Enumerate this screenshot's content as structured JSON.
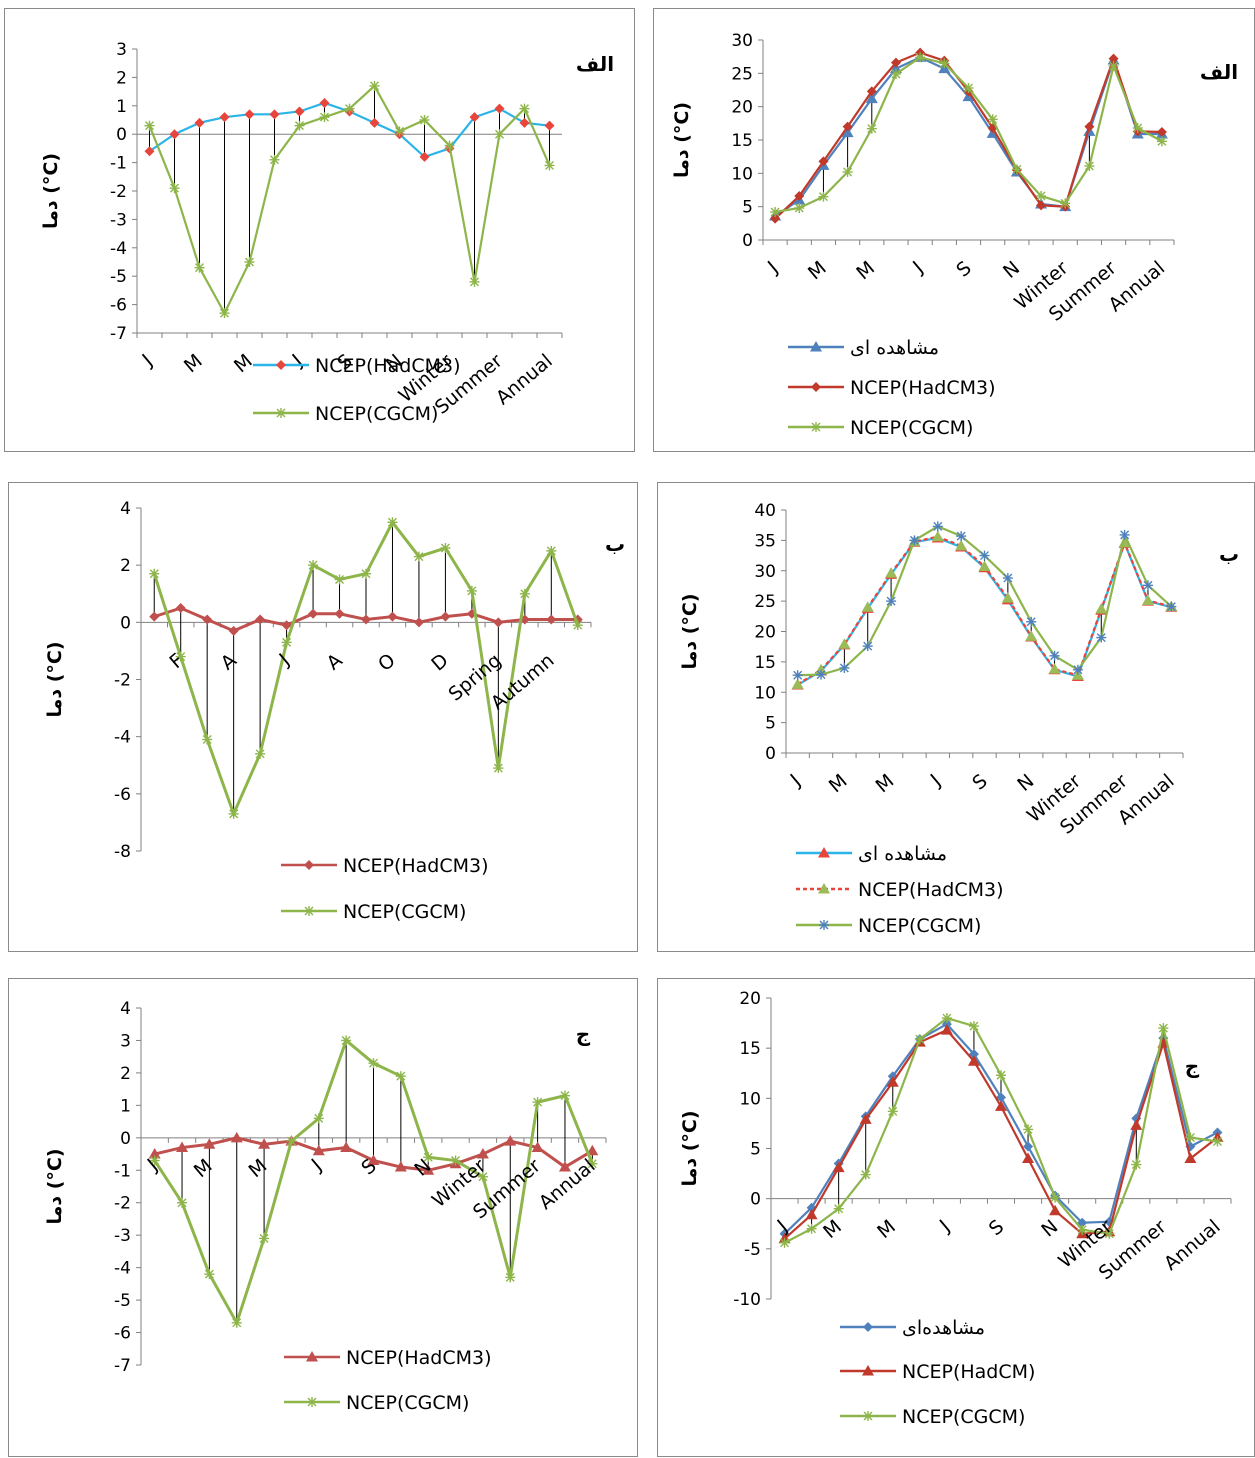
{
  "colors": {
    "blue": "#4F81BD",
    "red": "#C0392B",
    "green": "#8DB54A",
    "cyan": "#2AB4E8",
    "axis": "#808080",
    "grid": "#000000"
  },
  "chart_data": [
    {
      "type": "line",
      "id": "p1",
      "panel_label": "الف",
      "ylabel": "دما (°C)",
      "ylim": [
        -7,
        3
      ],
      "yticks": [
        3,
        2,
        1,
        0,
        -1,
        -2,
        -3,
        -4,
        -5,
        -6,
        -7
      ],
      "tick_labels": [
        "J",
        "M",
        "M",
        "J",
        "S",
        "N",
        "Winter",
        "Summer",
        "Annual"
      ],
      "tick_positions": [
        0,
        2,
        4,
        6,
        8,
        10,
        12,
        14,
        16
      ],
      "series": [
        {
          "name": "NCEP(HadCM3)",
          "color": "#2AB4E8",
          "marker": "diamond",
          "marker_color": "#E8453C",
          "values": [
            -0.6,
            0.0,
            0.4,
            0.6,
            0.7,
            0.7,
            0.8,
            1.1,
            0.8,
            0.4,
            0.0,
            -0.8,
            -0.5,
            0.6,
            0.9,
            0.4,
            0.3
          ]
        },
        {
          "name": "NCEP(CGCM)",
          "color": "#8DB54A",
          "marker": "star",
          "values": [
            0.3,
            -1.9,
            -4.7,
            -6.3,
            -4.5,
            -0.9,
            0.3,
            0.6,
            0.9,
            1.7,
            0.1,
            0.5,
            -0.4,
            -5.2,
            0.0,
            0.9,
            -1.1
          ]
        }
      ]
    },
    {
      "type": "line",
      "id": "p2",
      "panel_label": "الف",
      "ylabel": "دما (°C)",
      "ylim": [
        0,
        30
      ],
      "yticks": [
        30,
        25,
        20,
        15,
        10,
        5,
        0
      ],
      "tick_labels": [
        "J",
        "M",
        "M",
        "J",
        "S",
        "N",
        "Winter",
        "Summer",
        "Annual"
      ],
      "tick_positions": [
        0,
        2,
        4,
        6,
        8,
        10,
        12,
        14,
        16
      ],
      "series": [
        {
          "name": "مشاهده ای",
          "color": "#4F81BD",
          "marker": "triangle",
          "values": [
            3.6,
            6.0,
            11.2,
            16.1,
            21.2,
            25.7,
            27.4,
            25.7,
            21.5,
            16.0,
            10.2,
            5.4,
            5.0,
            16.3,
            27.0,
            15.9,
            15.9
          ]
        },
        {
          "name": "NCEP(HadCM3)",
          "color": "#C0392B",
          "marker": "diamond",
          "values": [
            3.2,
            6.6,
            11.8,
            17.0,
            22.3,
            26.6,
            28.1,
            26.9,
            22.3,
            16.8,
            10.5,
            5.2,
            5.0,
            17.0,
            27.2,
            16.3,
            16.2
          ]
        },
        {
          "name": "NCEP(CGCM)",
          "color": "#8DB54A",
          "marker": "star",
          "values": [
            4.2,
            4.8,
            6.5,
            10.2,
            16.7,
            24.9,
            27.4,
            26.5,
            22.8,
            18.1,
            10.6,
            6.6,
            5.5,
            11.1,
            26.1,
            16.8,
            14.8
          ]
        }
      ]
    },
    {
      "type": "line",
      "id": "p3",
      "panel_label": "ب",
      "ylabel": "دما (°C)",
      "ylim": [
        -8,
        4
      ],
      "yticks": [
        4,
        2,
        0,
        -2,
        -4,
        -6,
        -8
      ],
      "tick_labels": [
        "F",
        "A",
        "J",
        "A",
        "O",
        "D",
        "Spring",
        "Autumn"
      ],
      "tick_positions": [
        1,
        3,
        5,
        7,
        9,
        11,
        13,
        15
      ],
      "series": [
        {
          "name": "NCEP(HadCM3)",
          "color": "#C0504D",
          "marker": "diamond",
          "values": [
            0.2,
            0.5,
            0.1,
            -0.3,
            0.1,
            -0.1,
            0.3,
            0.3,
            0.1,
            0.2,
            0.0,
            0.2,
            0.3,
            0.0,
            0.1,
            0.1,
            0.1
          ]
        },
        {
          "name": "NCEP(CGCM)",
          "color": "#8DB54A",
          "marker": "star",
          "values": [
            1.7,
            -1.2,
            -4.1,
            -6.7,
            -4.6,
            -0.7,
            2.0,
            1.5,
            1.7,
            3.5,
            2.3,
            2.6,
            1.1,
            -5.1,
            1.0,
            2.5,
            -0.1
          ]
        }
      ]
    },
    {
      "type": "line",
      "id": "p4",
      "panel_label": "ب",
      "ylabel": "دما (°C)",
      "ylim": [
        0,
        40
      ],
      "yticks": [
        40,
        35,
        30,
        25,
        20,
        15,
        10,
        5,
        0
      ],
      "tick_labels": [
        "J",
        "M",
        "M",
        "J",
        "S",
        "N",
        "Winter",
        "Summer",
        "Annual"
      ],
      "tick_positions": [
        0,
        2,
        4,
        6,
        8,
        10,
        12,
        14,
        16
      ],
      "series": [
        {
          "name": "مشاهده ای",
          "color": "#2AB4E8",
          "marker": "triangle",
          "marker_color": "#E8453C",
          "values": [
            11.2,
            13.5,
            17.8,
            23.8,
            29.4,
            34.7,
            35.4,
            33.9,
            30.5,
            25.2,
            19.1,
            13.7,
            12.6,
            23.5,
            34.5,
            25.0,
            24.0
          ]
        },
        {
          "name": "NCEP(HadCM3)",
          "color": "#E8453C",
          "dash": "4 3",
          "marker": "triangle",
          "marker_color": "#9BBB59",
          "values": [
            11.3,
            13.7,
            17.9,
            24.0,
            29.6,
            34.8,
            35.6,
            34.1,
            30.7,
            25.5,
            19.2,
            13.8,
            12.8,
            23.7,
            34.6,
            25.1,
            24.1
          ]
        },
        {
          "name": "NCEP(CGCM)",
          "color": "#8DB54A",
          "marker": "star",
          "marker_color": "#4F81BD",
          "values": [
            12.8,
            12.9,
            14.0,
            17.6,
            25.0,
            35.0,
            37.3,
            35.7,
            32.5,
            28.8,
            21.6,
            16.0,
            13.7,
            19.0,
            35.9,
            27.6,
            24.1
          ]
        }
      ]
    },
    {
      "type": "line",
      "id": "p5",
      "panel_label": "ج",
      "ylabel": "دما (°C)",
      "ylim": [
        -7,
        4
      ],
      "yticks": [
        4,
        3,
        2,
        1,
        0,
        -1,
        -2,
        -3,
        -4,
        -5,
        -6,
        -7
      ],
      "tick_labels": [
        "J",
        "M",
        "M",
        "J",
        "S",
        "N",
        "Winter",
        "Summer",
        "Annual"
      ],
      "tick_positions": [
        0,
        2,
        4,
        6,
        8,
        10,
        12,
        14,
        16
      ],
      "series": [
        {
          "name": "NCEP(HadCM3)",
          "color": "#C0504D",
          "marker": "triangle",
          "values": [
            -0.5,
            -0.3,
            -0.2,
            0.0,
            -0.2,
            -0.1,
            -0.4,
            -0.3,
            -0.7,
            -0.9,
            -1.0,
            -0.8,
            -0.5,
            -0.1,
            -0.3,
            -0.9,
            -0.4
          ]
        },
        {
          "name": "NCEP(CGCM)",
          "color": "#8DB54A",
          "marker": "star",
          "values": [
            -0.7,
            -2.0,
            -4.2,
            -5.7,
            -3.1,
            -0.1,
            0.6,
            3.0,
            2.3,
            1.9,
            -0.6,
            -0.7,
            -1.2,
            -4.3,
            1.1,
            1.3,
            -0.8
          ]
        }
      ]
    },
    {
      "type": "line",
      "id": "p6",
      "panel_label": "ج",
      "ylabel": "دما (°C)",
      "ylim": [
        -10,
        20
      ],
      "yticks": [
        20,
        15,
        10,
        5,
        0,
        -5,
        -10
      ],
      "tick_labels": [
        "J",
        "M",
        "M",
        "J",
        "S",
        "N",
        "Winter",
        "Summer",
        "Annual"
      ],
      "tick_positions": [
        0,
        2,
        4,
        6,
        8,
        10,
        12,
        14,
        16
      ],
      "series": [
        {
          "name": "مشاهده‌ای",
          "color": "#4F81BD",
          "marker": "diamond",
          "values": [
            -3.5,
            -0.9,
            3.5,
            8.2,
            12.2,
            15.9,
            17.4,
            14.4,
            10.1,
            5.2,
            0.3,
            -2.4,
            -2.3,
            8.0,
            16.0,
            5.2,
            6.6
          ]
        },
        {
          "name": "NCEP(HadCM)",
          "color": "#C0392B",
          "marker": "triangle",
          "values": [
            -4.0,
            -1.6,
            3.1,
            7.9,
            11.6,
            15.6,
            16.8,
            13.7,
            9.2,
            4.0,
            -1.2,
            -3.5,
            -3.3,
            7.3,
            15.5,
            4.0,
            6.1
          ]
        },
        {
          "name": "NCEP(CGCM)",
          "color": "#8DB54A",
          "marker": "star",
          "values": [
            -4.4,
            -3.0,
            -1.0,
            2.4,
            8.7,
            15.9,
            18.0,
            17.2,
            12.3,
            6.9,
            0.1,
            -3.1,
            -3.5,
            3.4,
            17.0,
            6.1,
            5.7
          ]
        }
      ]
    }
  ]
}
